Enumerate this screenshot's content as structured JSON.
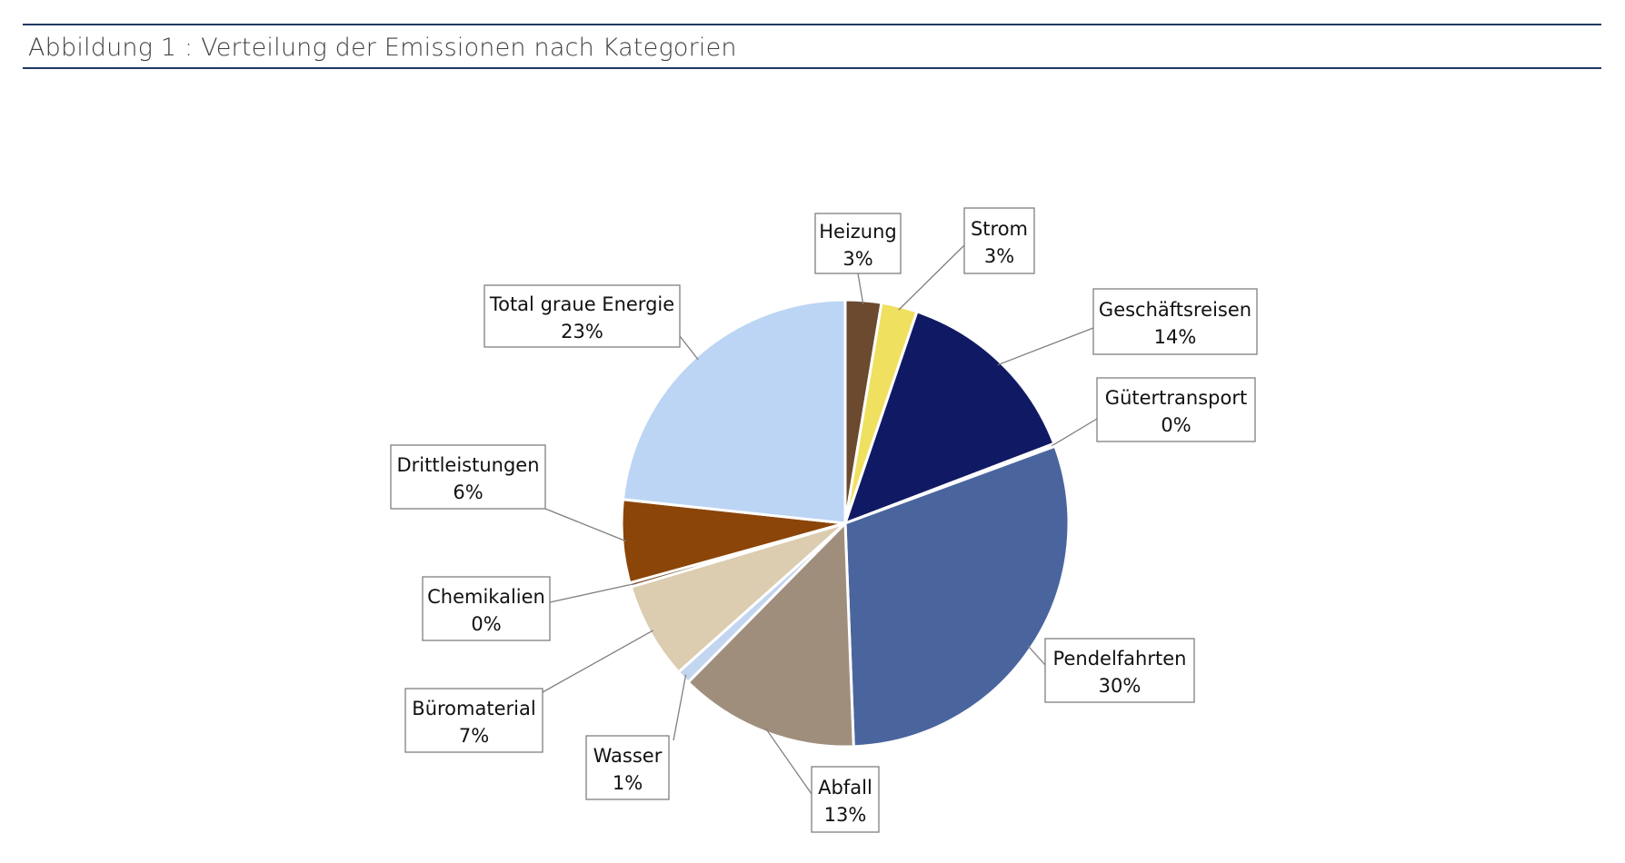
{
  "caption": "Abbildung 1 : Verteilung der Emissionen nach Kategorien",
  "chart_data": {
    "type": "pie",
    "title": "",
    "slices": [
      {
        "name": "Heizung",
        "value": 2.6,
        "label": "3%",
        "color": "#6b4a30"
      },
      {
        "name": "Strom",
        "value": 2.6,
        "label": "3%",
        "color": "#f0e060"
      },
      {
        "name": "Geschäftsreisen",
        "value": 14.0,
        "label": "14%",
        "color": "#101a64"
      },
      {
        "name": "Gütertransport",
        "value": 0.2,
        "label": "0%",
        "color": "#2e4a8a"
      },
      {
        "name": "Pendelfahrten",
        "value": 30.0,
        "label": "30%",
        "color": "#4a659e"
      },
      {
        "name": "Abfall",
        "value": 13.0,
        "label": "13%",
        "color": "#a08e7c"
      },
      {
        "name": "Wasser",
        "value": 1.0,
        "label": "1%",
        "color": "#c3d6f0"
      },
      {
        "name": "Büromaterial",
        "value": 7.0,
        "label": "7%",
        "color": "#dcccb0"
      },
      {
        "name": "Chemikalien",
        "value": 0.3,
        "label": "0%",
        "color": "#7a5030"
      },
      {
        "name": "Drittleistungen",
        "value": 6.0,
        "label": "6%",
        "color": "#8b4508"
      },
      {
        "name": "Total graue Energie",
        "value": 23.3,
        "label": "23%",
        "color": "#bcd5f4"
      }
    ]
  }
}
